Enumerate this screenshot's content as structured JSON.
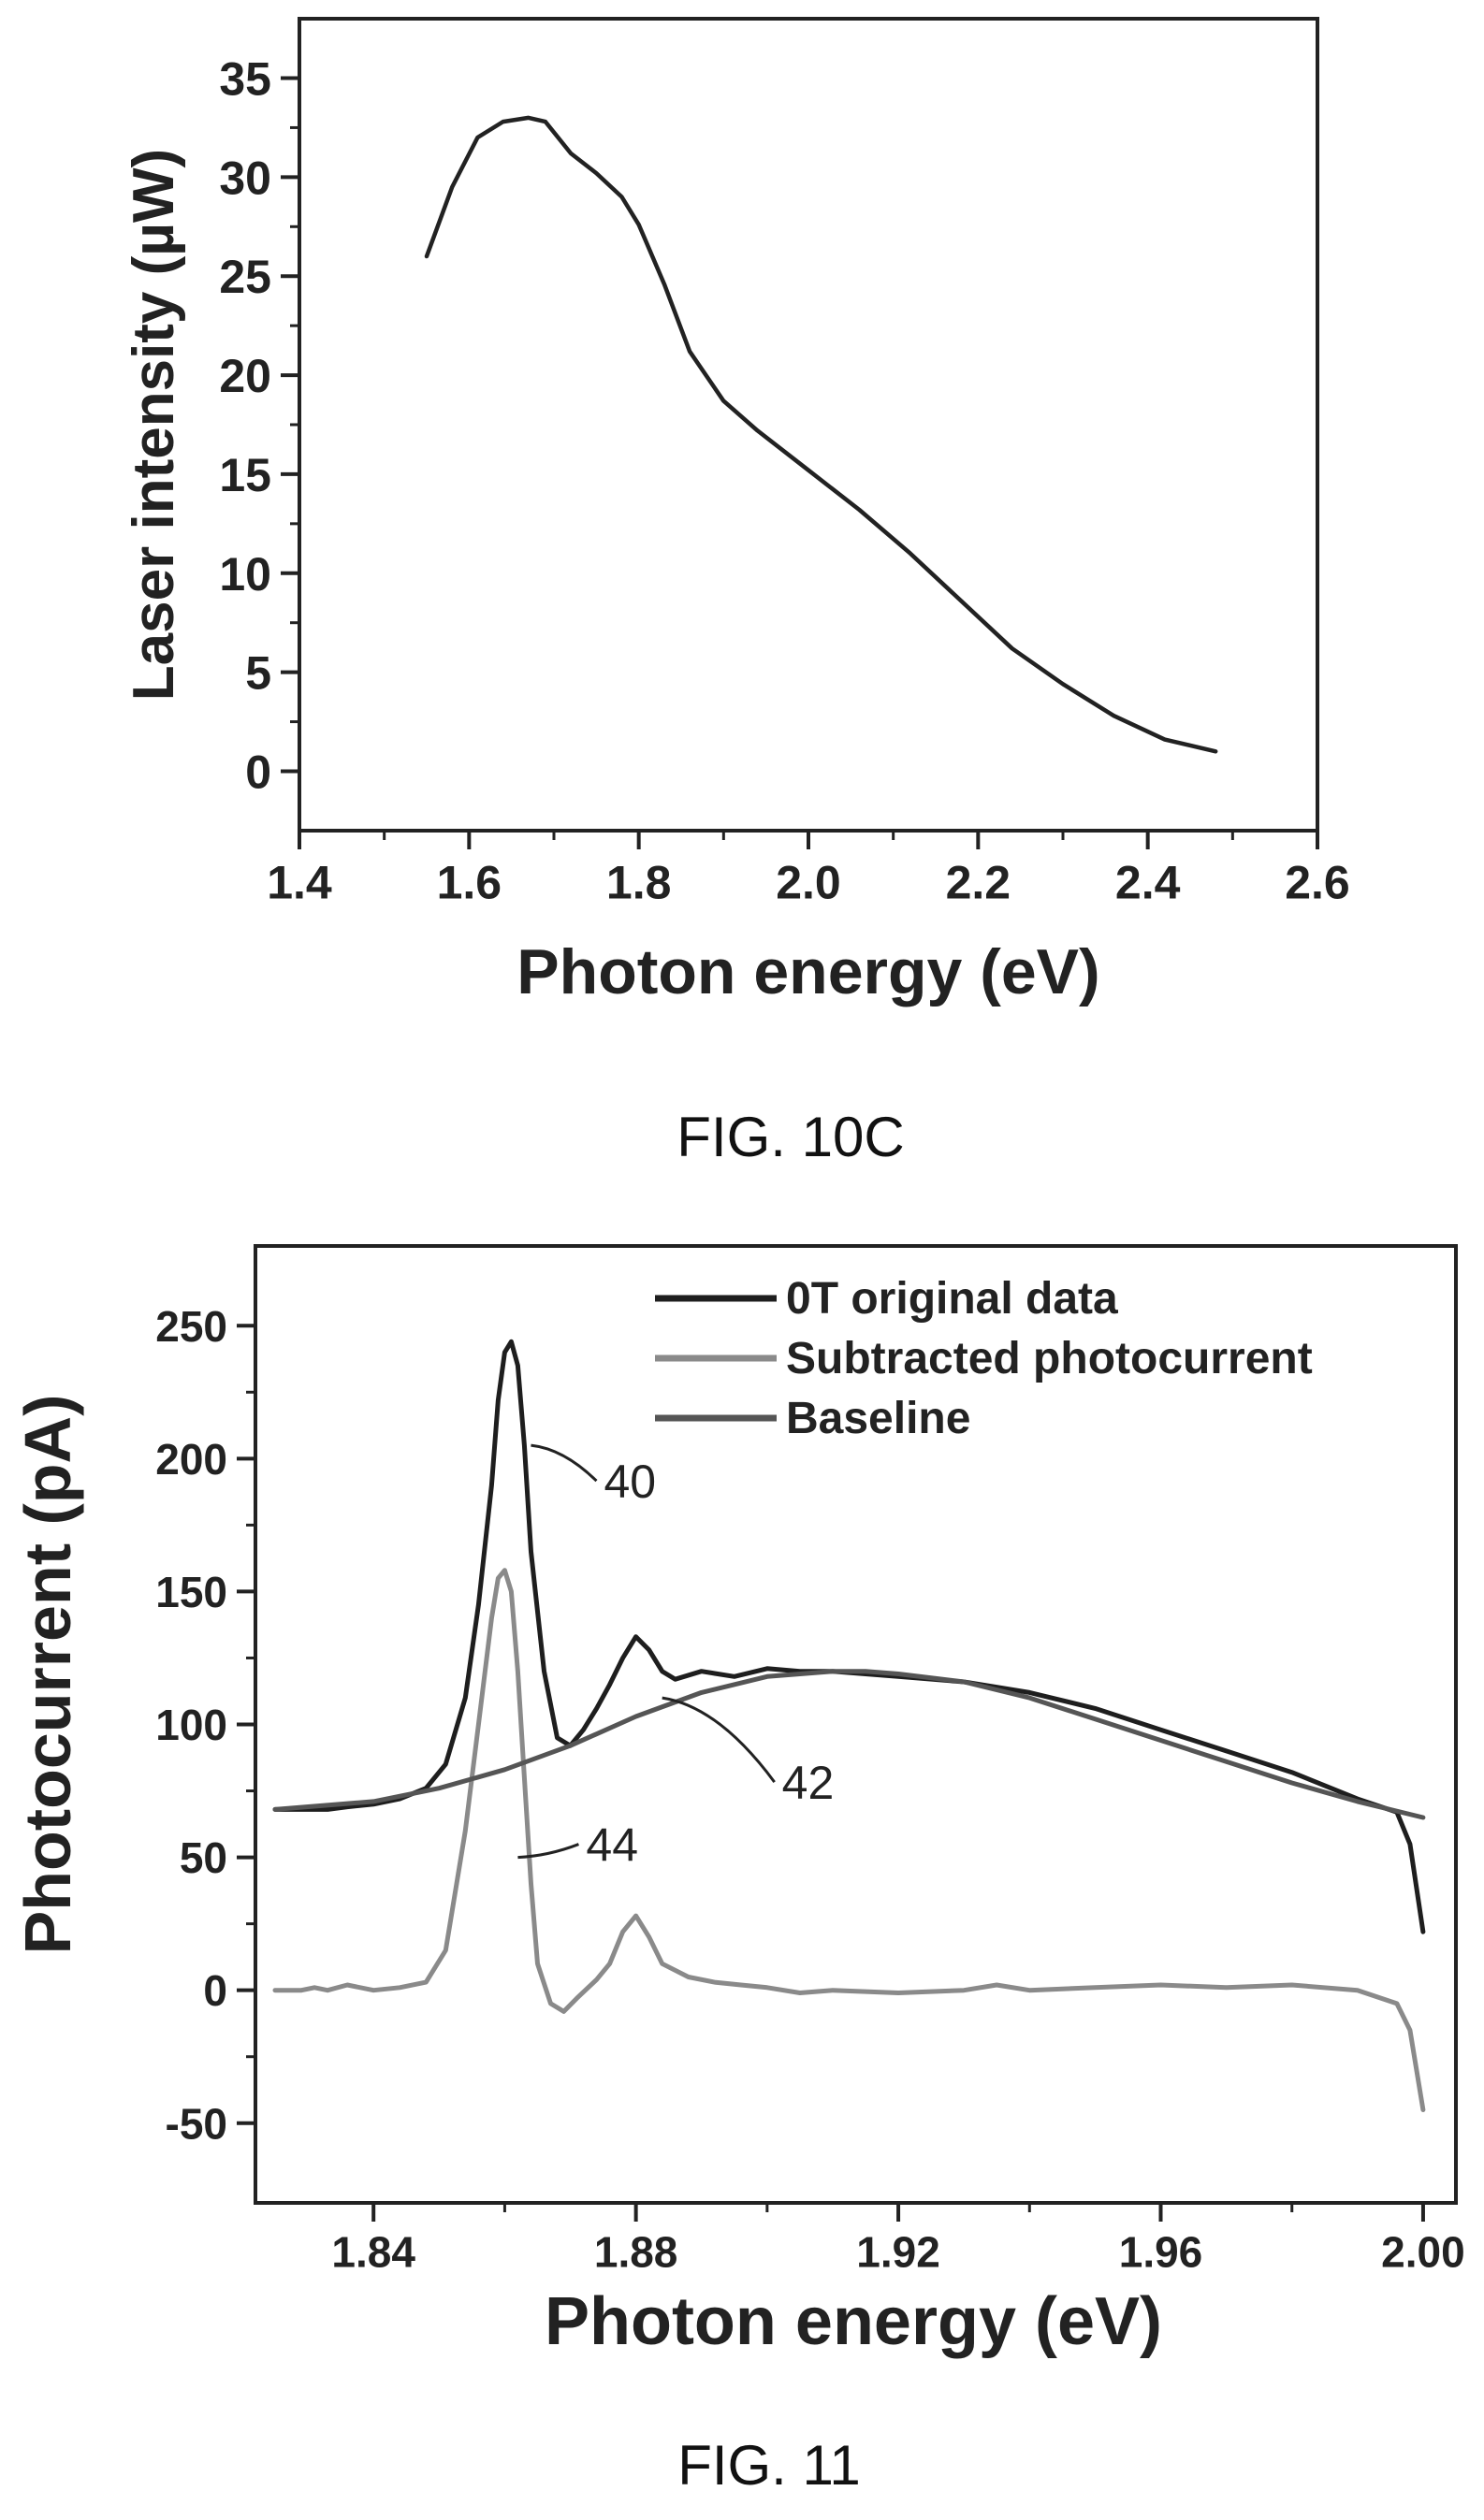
{
  "figure_captions": {
    "fig10c": "FIG. 10C",
    "fig11": "FIG. 11"
  },
  "chart_data": [
    {
      "type": "line",
      "title": "",
      "xlabel": "Photon energy (eV)",
      "ylabel": "Laser intensity (µW)",
      "xlim": [
        1.4,
        2.6
      ],
      "ylim": [
        -3,
        38
      ],
      "xticks": [
        1.4,
        1.6,
        1.8,
        2.0,
        2.2,
        2.4,
        2.6
      ],
      "xtick_labels": [
        "1.4",
        "1.6",
        "1.8",
        "2.0",
        "2.2",
        "2.4",
        "2.6"
      ],
      "yticks": [
        0,
        5,
        10,
        15,
        20,
        25,
        30,
        35
      ],
      "ytick_labels": [
        "0",
        "5",
        "10",
        "15",
        "20",
        "25",
        "30",
        "35"
      ],
      "grid": false,
      "color": "#222222",
      "series": [
        {
          "x": [
            1.55,
            1.58,
            1.61,
            1.64,
            1.67,
            1.69,
            1.72,
            1.75,
            1.78,
            1.8,
            1.83,
            1.86,
            1.9,
            1.94,
            2.0,
            2.06,
            2.12,
            2.18,
            2.24,
            2.3,
            2.36,
            2.42,
            2.48
          ],
          "y": [
            26,
            29.5,
            32,
            32.8,
            33,
            32.8,
            31.2,
            30.2,
            29,
            27.6,
            24.6,
            21.2,
            18.7,
            17.2,
            15.2,
            13.2,
            11,
            8.6,
            6.2,
            4.4,
            2.8,
            1.6,
            1.0
          ]
        }
      ]
    },
    {
      "type": "line",
      "title": "",
      "xlabel": "Photon energy (eV)",
      "ylabel": "Photocurrent (pA)",
      "xlim": [
        1.822,
        2.005
      ],
      "ylim": [
        -80,
        280
      ],
      "xticks": [
        1.84,
        1.88,
        1.92,
        1.96,
        2.0
      ],
      "xtick_labels": [
        "1.84",
        "1.88",
        "1.92",
        "1.96",
        "2.00"
      ],
      "yticks": [
        -50,
        0,
        50,
        100,
        150,
        200,
        250
      ],
      "ytick_labels": [
        "-50",
        "0",
        "50",
        "100",
        "150",
        "200",
        "250"
      ],
      "grid": false,
      "legend_position": "top-right",
      "series": [
        {
          "name": "0T original data",
          "color": "#1e1e1e",
          "x": [
            1.825,
            1.829,
            1.833,
            1.836,
            1.84,
            1.844,
            1.848,
            1.851,
            1.854,
            1.856,
            1.858,
            1.859,
            1.86,
            1.861,
            1.862,
            1.863,
            1.864,
            1.866,
            1.868,
            1.87,
            1.872,
            1.874,
            1.876,
            1.878,
            1.88,
            1.882,
            1.884,
            1.886,
            1.89,
            1.895,
            1.9,
            1.905,
            1.91,
            1.915,
            1.92,
            1.93,
            1.94,
            1.95,
            1.96,
            1.97,
            1.98,
            1.99,
            1.996,
            1.998,
            2.0
          ],
          "y": [
            68,
            68,
            68,
            69,
            70,
            72,
            76,
            85,
            110,
            145,
            190,
            222,
            240,
            244,
            235,
            205,
            165,
            120,
            95,
            92,
            98,
            106,
            115,
            125,
            133,
            128,
            120,
            117,
            120,
            118,
            121,
            120,
            120,
            119,
            118,
            116,
            112,
            106,
            98,
            90,
            82,
            72,
            67,
            55,
            22
          ]
        },
        {
          "name": "Subtracted photocurrent",
          "color": "#8a8a8a",
          "x": [
            1.825,
            1.829,
            1.831,
            1.833,
            1.836,
            1.84,
            1.844,
            1.848,
            1.851,
            1.854,
            1.856,
            1.858,
            1.859,
            1.86,
            1.861,
            1.862,
            1.863,
            1.864,
            1.865,
            1.867,
            1.869,
            1.871,
            1.874,
            1.876,
            1.878,
            1.88,
            1.882,
            1.884,
            1.888,
            1.892,
            1.896,
            1.9,
            1.905,
            1.91,
            1.92,
            1.93,
            1.935,
            1.94,
            1.95,
            1.96,
            1.97,
            1.98,
            1.99,
            1.996,
            1.998,
            2.0
          ],
          "y": [
            0,
            0,
            1,
            0,
            2,
            0,
            1,
            3,
            15,
            60,
            100,
            140,
            155,
            158,
            150,
            120,
            80,
            40,
            10,
            -5,
            -8,
            -3,
            4,
            10,
            22,
            28,
            20,
            10,
            5,
            3,
            2,
            1,
            -1,
            0,
            -1,
            0,
            2,
            0,
            1,
            2,
            1,
            2,
            0,
            -5,
            -15,
            -45
          ]
        },
        {
          "name": "Baseline",
          "color": "#555555",
          "x": [
            1.825,
            1.84,
            1.85,
            1.86,
            1.87,
            1.88,
            1.89,
            1.9,
            1.91,
            1.915,
            1.92,
            1.93,
            1.94,
            1.95,
            1.96,
            1.97,
            1.98,
            1.99,
            2.0
          ],
          "y": [
            68,
            71,
            76,
            83,
            92,
            103,
            112,
            118,
            120,
            120,
            119,
            116,
            110,
            102,
            94,
            86,
            78,
            71,
            65
          ]
        }
      ],
      "annotations": [
        {
          "text": "40",
          "target_x": 1.864,
          "target_y": 205
        },
        {
          "text": "42",
          "target_x": 1.884,
          "target_y": 110
        },
        {
          "text": "44",
          "target_x": 1.862,
          "target_y": 50
        }
      ]
    }
  ]
}
